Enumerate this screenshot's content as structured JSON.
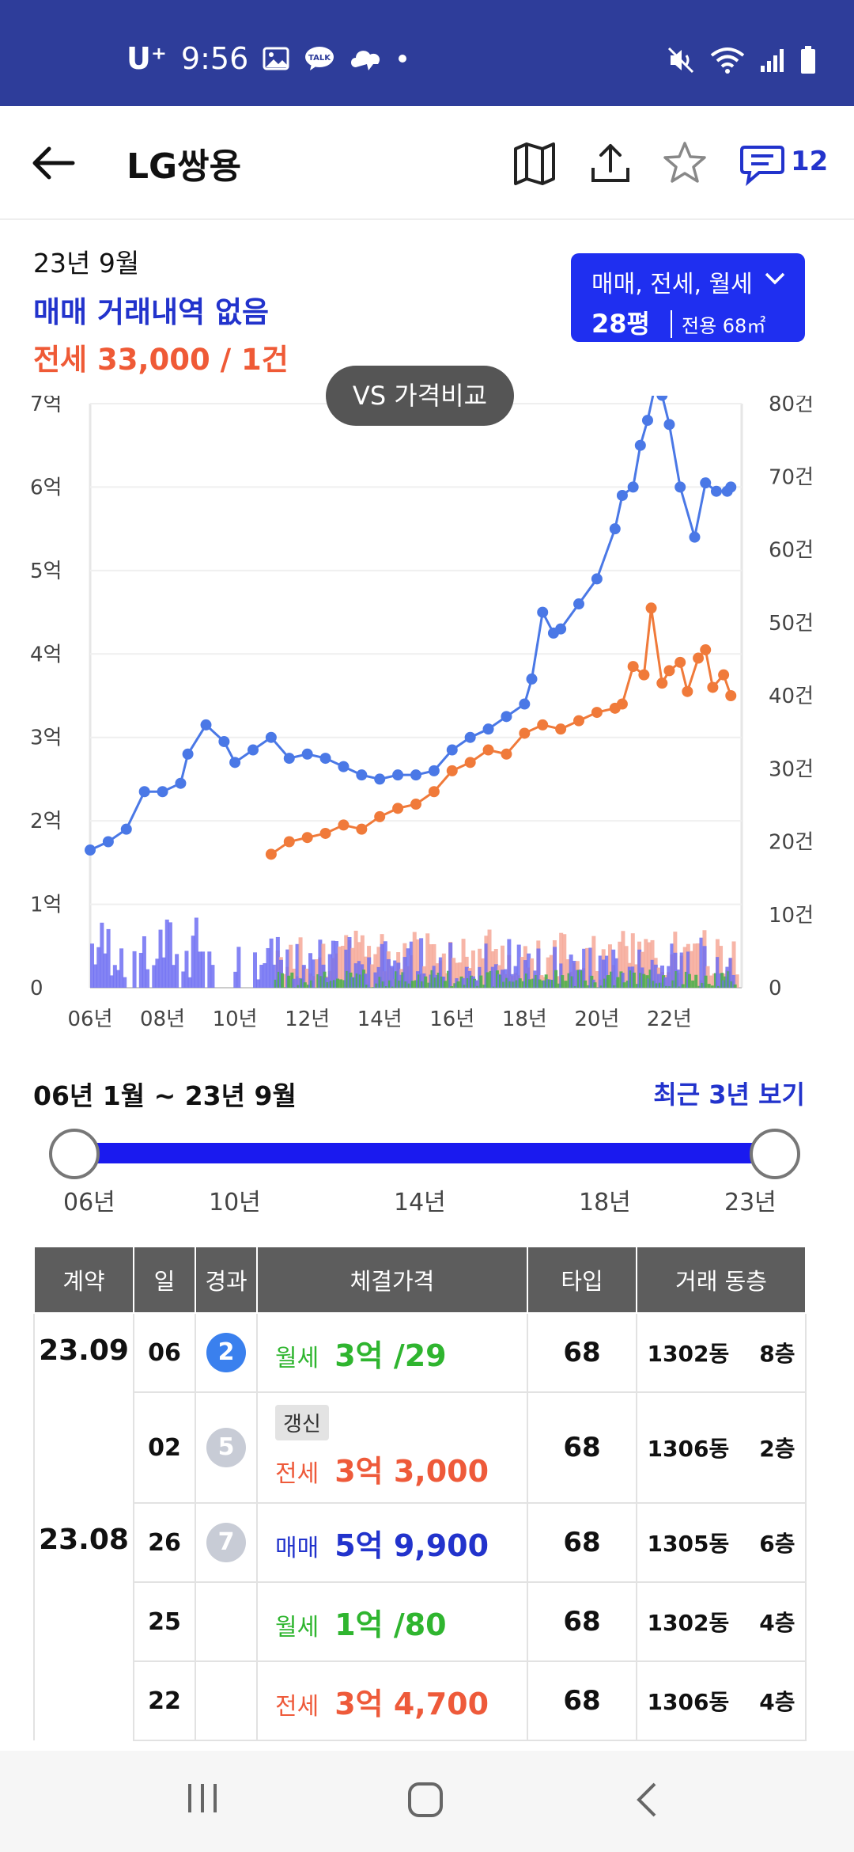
{
  "status": {
    "carrier": "U⁺",
    "time": "9:56",
    "talk": "TALK"
  },
  "header": {
    "title": "LG쌍용",
    "comment_count": "12"
  },
  "summary": {
    "date": "23년 9월",
    "sale_text": "매매 거래내역 없음",
    "jeonse_text": "전세 33,000 / 1건"
  },
  "filter": {
    "types": "매매, 전세, 월세",
    "size": "28평",
    "area": "전용 68㎡"
  },
  "vs_button": "VS 가격비교",
  "chart_data": {
    "type": "line",
    "title": "",
    "x_ticks": [
      "06년",
      "08년",
      "10년",
      "12년",
      "14년",
      "16년",
      "18년",
      "20년",
      "22년"
    ],
    "x_tick_years": [
      2006,
      2008,
      2010,
      2012,
      2014,
      2016,
      2018,
      2020,
      2022
    ],
    "xlim": [
      2006,
      2024
    ],
    "y_left_ticks": [
      "0",
      "1억",
      "2억",
      "3억",
      "4억",
      "5억",
      "6억",
      "7억"
    ],
    "y_left_lim": [
      0,
      7
    ],
    "y_right_ticks": [
      "0",
      "10건",
      "20건",
      "30건",
      "40건",
      "50건",
      "60건",
      "70건",
      "80건"
    ],
    "y_right_lim": [
      0,
      80
    ],
    "grid": true,
    "series": [
      {
        "name": "매매",
        "color": "#4a78e6",
        "axis": "left",
        "x": [
          2006.0,
          2006.5,
          2007.0,
          2007.5,
          2008.0,
          2008.5,
          2008.7,
          2009.2,
          2009.7,
          2010.0,
          2010.5,
          2011.0,
          2011.5,
          2012.0,
          2012.5,
          2013.0,
          2013.5,
          2014.0,
          2014.5,
          2015.0,
          2015.5,
          2016.0,
          2016.5,
          2017.0,
          2017.5,
          2018.0,
          2018.2,
          2018.5,
          2018.8,
          2019.0,
          2019.5,
          2020.0,
          2020.5,
          2020.7,
          2021.0,
          2021.2,
          2021.4,
          2021.6,
          2021.8,
          2022.0,
          2022.3,
          2022.7,
          2023.0,
          2023.3,
          2023.6,
          2023.7
        ],
        "values": [
          1.65,
          1.75,
          1.9,
          2.35,
          2.35,
          2.45,
          2.8,
          3.15,
          2.95,
          2.7,
          2.85,
          3.0,
          2.75,
          2.8,
          2.75,
          2.65,
          2.55,
          2.5,
          2.55,
          2.55,
          2.6,
          2.85,
          3.0,
          3.1,
          3.25,
          3.4,
          3.7,
          4.5,
          4.25,
          4.3,
          4.6,
          4.9,
          5.5,
          5.9,
          6.0,
          6.5,
          6.8,
          7.2,
          7.1,
          6.75,
          6.0,
          5.4,
          6.05,
          5.95,
          5.95,
          6.0
        ]
      },
      {
        "name": "전세",
        "color": "#f07a3a",
        "axis": "left",
        "x": [
          2011.0,
          2011.5,
          2012.0,
          2012.5,
          2013.0,
          2013.5,
          2014.0,
          2014.5,
          2015.0,
          2015.5,
          2016.0,
          2016.5,
          2017.0,
          2017.5,
          2018.0,
          2018.5,
          2019.0,
          2019.5,
          2020.0,
          2020.5,
          2020.7,
          2021.0,
          2021.3,
          2021.5,
          2021.8,
          2022.0,
          2022.3,
          2022.5,
          2022.8,
          2023.0,
          2023.2,
          2023.5,
          2023.7
        ],
        "values": [
          1.6,
          1.75,
          1.8,
          1.85,
          1.95,
          1.9,
          2.05,
          2.15,
          2.2,
          2.35,
          2.6,
          2.7,
          2.85,
          2.8,
          3.05,
          3.15,
          3.1,
          3.2,
          3.3,
          3.35,
          3.4,
          3.85,
          3.75,
          4.55,
          3.65,
          3.8,
          3.9,
          3.55,
          3.95,
          4.05,
          3.6,
          3.75,
          3.5
        ]
      }
    ],
    "volume_bars": [
      {
        "name": "매매 거래량",
        "color": "#6f6ff2",
        "axis": "right"
      },
      {
        "name": "전세 거래량",
        "color": "#f6a898",
        "axis": "right"
      },
      {
        "name": "월세 거래량",
        "color": "#4caf4c",
        "axis": "right"
      }
    ]
  },
  "range": {
    "label": "06년 1월 ~ 23년 9월",
    "recent_button": "최근 3년 보기",
    "ticks": [
      "06년",
      "10년",
      "14년",
      "18년",
      "23년"
    ],
    "start_fraction": 0.0,
    "end_fraction": 1.0
  },
  "table": {
    "headers": [
      "계약",
      "일",
      "경과",
      "체결가격",
      "타입",
      "거래 동층"
    ],
    "rows": [
      {
        "contract": "23.09",
        "day": "06",
        "elapsed": "2",
        "elapsed_color": "#3a80ee",
        "renew": "",
        "kind": "월세",
        "amount": "3억 /29",
        "color": "#2fb52f",
        "type": "68",
        "dong": "1302동",
        "floor": "8층"
      },
      {
        "contract": "",
        "day": "02",
        "elapsed": "5",
        "elapsed_color": "#c8ccd6",
        "renew": "갱신",
        "kind": "전세",
        "amount": "3억 3,000",
        "color": "#ee5a3a",
        "type": "68",
        "dong": "1306동",
        "floor": "2층"
      },
      {
        "contract": "23.08",
        "day": "26",
        "elapsed": "7",
        "elapsed_color": "#c8ccd6",
        "renew": "",
        "kind": "매매",
        "amount": "5억 9,900",
        "color": "#2233cc",
        "type": "68",
        "dong": "1305동",
        "floor": "6층"
      },
      {
        "contract": "",
        "day": "25",
        "elapsed": "",
        "elapsed_color": "",
        "renew": "",
        "kind": "월세",
        "amount": "1억 /80",
        "color": "#2fb52f",
        "type": "68",
        "dong": "1302동",
        "floor": "4층"
      },
      {
        "contract": "",
        "day": "22",
        "elapsed": "",
        "elapsed_color": "",
        "renew": "",
        "kind": "전세",
        "amount": "3억 4,700",
        "color": "#ee5a3a",
        "type": "68",
        "dong": "1306동",
        "floor": "4층"
      }
    ]
  }
}
